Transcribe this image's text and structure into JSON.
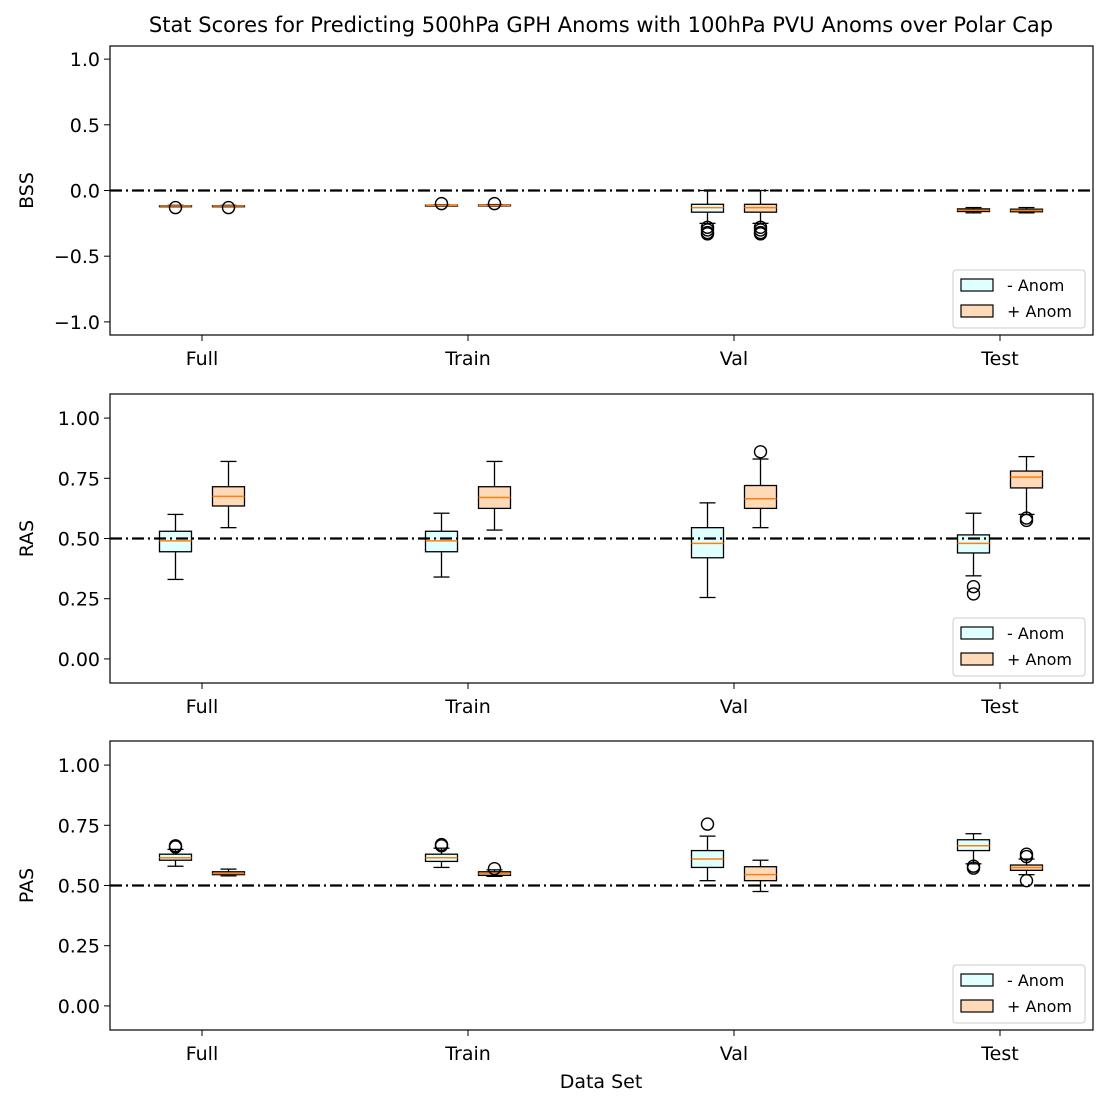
{
  "title": "Stat Scores for Predicting 500hPa GPH Anoms with 100hPa PVU Anoms over Polar Cap",
  "xlabel": "Data Set",
  "categories": [
    "Full",
    "Train",
    "Val",
    "Test"
  ],
  "legend": {
    "labels": [
      "- Anom",
      "+ Anom"
    ],
    "placement": "lower-right"
  },
  "colors": {
    "neg_fill": "#e0ffff",
    "pos_fill": "#ffdab9",
    "median": "#ff7f0e",
    "reference_line": "#000000"
  },
  "chart_data": [
    {
      "type": "box",
      "ylabel": "BSS",
      "ylim": [
        -1.1,
        1.1
      ],
      "yticks": [
        -1.0,
        -0.5,
        0.0,
        0.5,
        1.0
      ],
      "ytick_labels": [
        "−1.0",
        "−0.5",
        "0.0",
        "0.5",
        "1.0"
      ],
      "reference_line": 0.0,
      "categories": [
        "Full",
        "Train",
        "Val",
        "Test"
      ],
      "series": [
        {
          "name": "- Anom",
          "boxes": [
            {
              "whislo": -0.122,
              "q1": -0.12,
              "med": -0.118,
              "q3": -0.116,
              "whishi": -0.113,
              "fliers": [
                -0.13
              ]
            },
            {
              "whislo": -0.116,
              "q1": -0.115,
              "med": -0.113,
              "q3": -0.111,
              "whishi": -0.109,
              "fliers": [
                -0.1
              ]
            },
            {
              "whislo": -0.25,
              "q1": -0.165,
              "med": -0.13,
              "q3": -0.105,
              "whishi": 0.0,
              "fliers": [
                -0.28,
                -0.3,
                -0.32,
                -0.33
              ]
            },
            {
              "whislo": -0.17,
              "q1": -0.16,
              "med": -0.15,
              "q3": -0.14,
              "whishi": -0.13,
              "fliers": []
            }
          ]
        },
        {
          "name": "+ Anom",
          "boxes": [
            {
              "whislo": -0.122,
              "q1": -0.12,
              "med": -0.118,
              "q3": -0.116,
              "whishi": -0.113,
              "fliers": [
                -0.13
              ]
            },
            {
              "whislo": -0.118,
              "q1": -0.116,
              "med": -0.113,
              "q3": -0.11,
              "whishi": -0.107,
              "fliers": [
                -0.1
              ]
            },
            {
              "whislo": -0.25,
              "q1": -0.165,
              "med": -0.13,
              "q3": -0.105,
              "whishi": 0.0,
              "fliers": [
                -0.28,
                -0.3,
                -0.32,
                -0.33
              ]
            },
            {
              "whislo": -0.17,
              "q1": -0.162,
              "med": -0.152,
              "q3": -0.142,
              "whishi": -0.13,
              "fliers": []
            }
          ]
        }
      ]
    },
    {
      "type": "box",
      "ylabel": "RAS",
      "ylim": [
        -0.1,
        1.1
      ],
      "yticks": [
        0.0,
        0.25,
        0.5,
        0.75,
        1.0
      ],
      "ytick_labels": [
        "0.00",
        "0.25",
        "0.50",
        "0.75",
        "1.00"
      ],
      "reference_line": 0.5,
      "categories": [
        "Full",
        "Train",
        "Val",
        "Test"
      ],
      "series": [
        {
          "name": "- Anom",
          "boxes": [
            {
              "whislo": 0.33,
              "q1": 0.445,
              "med": 0.49,
              "q3": 0.53,
              "whishi": 0.6,
              "fliers": []
            },
            {
              "whislo": 0.34,
              "q1": 0.445,
              "med": 0.49,
              "q3": 0.53,
              "whishi": 0.605,
              "fliers": []
            },
            {
              "whislo": 0.255,
              "q1": 0.42,
              "med": 0.48,
              "q3": 0.545,
              "whishi": 0.648,
              "fliers": []
            },
            {
              "whislo": 0.345,
              "q1": 0.44,
              "med": 0.48,
              "q3": 0.515,
              "whishi": 0.605,
              "fliers": [
                0.3,
                0.27
              ]
            }
          ]
        },
        {
          "name": "+ Anom",
          "boxes": [
            {
              "whislo": 0.545,
              "q1": 0.635,
              "med": 0.675,
              "q3": 0.715,
              "whishi": 0.82,
              "fliers": []
            },
            {
              "whislo": 0.535,
              "q1": 0.625,
              "med": 0.67,
              "q3": 0.715,
              "whishi": 0.82,
              "fliers": []
            },
            {
              "whislo": 0.545,
              "q1": 0.625,
              "med": 0.665,
              "q3": 0.72,
              "whishi": 0.83,
              "fliers": [
                0.86
              ]
            },
            {
              "whislo": 0.6,
              "q1": 0.71,
              "med": 0.755,
              "q3": 0.78,
              "whishi": 0.84,
              "fliers": [
                0.585,
                0.575
              ]
            }
          ]
        }
      ]
    },
    {
      "type": "box",
      "ylabel": "PAS",
      "ylim": [
        -0.1,
        1.1
      ],
      "yticks": [
        0.0,
        0.25,
        0.5,
        0.75,
        1.0
      ],
      "ytick_labels": [
        "0.00",
        "0.25",
        "0.50",
        "0.75",
        "1.00"
      ],
      "reference_line": 0.5,
      "categories": [
        "Full",
        "Train",
        "Val",
        "Test"
      ],
      "series": [
        {
          "name": "- Anom",
          "boxes": [
            {
              "whislo": 0.58,
              "q1": 0.605,
              "med": 0.615,
              "q3": 0.63,
              "whishi": 0.65,
              "fliers": [
                0.66,
                0.665
              ]
            },
            {
              "whislo": 0.575,
              "q1": 0.6,
              "med": 0.615,
              "q3": 0.63,
              "whishi": 0.655,
              "fliers": [
                0.665,
                0.67
              ]
            },
            {
              "whislo": 0.52,
              "q1": 0.575,
              "med": 0.61,
              "q3": 0.645,
              "whishi": 0.705,
              "fliers": [
                0.755
              ]
            },
            {
              "whislo": 0.59,
              "q1": 0.645,
              "med": 0.665,
              "q3": 0.69,
              "whishi": 0.715,
              "fliers": [
                0.58,
                0.572
              ]
            }
          ]
        },
        {
          "name": "+ Anom",
          "boxes": [
            {
              "whislo": 0.54,
              "q1": 0.545,
              "med": 0.55,
              "q3": 0.557,
              "whishi": 0.568,
              "fliers": []
            },
            {
              "whislo": 0.538,
              "q1": 0.542,
              "med": 0.55,
              "q3": 0.557,
              "whishi": 0.565,
              "fliers": [
                0.57
              ]
            },
            {
              "whislo": 0.475,
              "q1": 0.52,
              "med": 0.545,
              "q3": 0.578,
              "whishi": 0.605,
              "fliers": []
            },
            {
              "whislo": 0.545,
              "q1": 0.563,
              "med": 0.575,
              "q3": 0.585,
              "whishi": 0.61,
              "fliers": [
                0.52,
                0.62,
                0.63
              ]
            }
          ]
        }
      ]
    }
  ]
}
